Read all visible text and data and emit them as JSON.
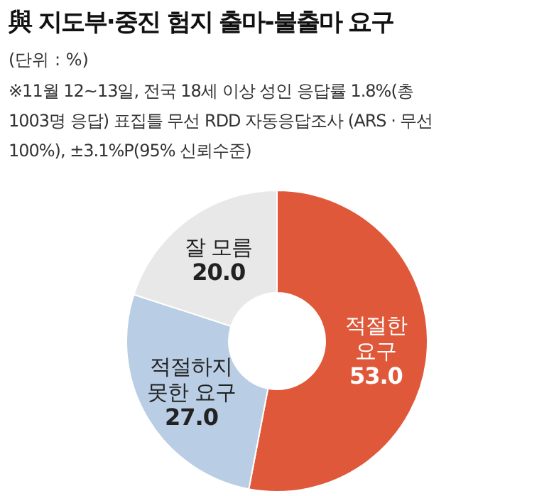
{
  "chart_data": {
    "type": "donut",
    "title": "與 지도부·중진 험지 출마-불출마 요구",
    "subtitle": "(단위 : %)",
    "annotations": [
      "※11월 12~13일, 전국 18세 이상 성인 응답률 1.8%(총 1003명 응답) 표집틀 무선 RDD 자동응답조사 (ARS · 무선 100%), ±3.1%P(95% 신뢰수준)"
    ],
    "categories": [
      "적절한 요구",
      "적절하지 못한 요구",
      "잘 모름"
    ],
    "values": [
      53.0,
      27.0,
      20.0
    ],
    "colors": [
      "#e0583a",
      "#b9cde4",
      "#e8e8e8"
    ],
    "value_labels": [
      "53.0",
      "27.0",
      "20.0"
    ]
  }
}
